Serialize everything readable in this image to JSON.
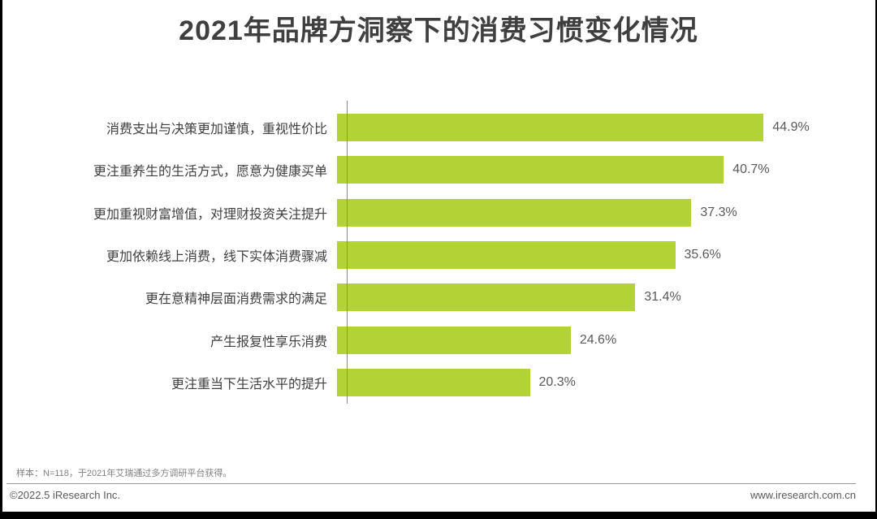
{
  "title": "2021年品牌方洞察下的消费习惯变化情况",
  "chart_data": {
    "type": "bar",
    "orientation": "horizontal",
    "title": "2021年品牌方洞察下的消费习惯变化情况",
    "categories": [
      "消费支出与决策更加谨慎，重视性价比",
      "更注重养生的生活方式，愿意为健康买单",
      "更加重视财富增值，对理财投资关注提升",
      "更加依赖线上消费，线下实体消费骤减",
      "更在意精神层面消费需求的满足",
      "产生报复性享乐消费",
      "更注重当下生活水平的提升"
    ],
    "values": [
      44.9,
      40.7,
      37.3,
      35.6,
      31.4,
      24.6,
      20.3
    ],
    "value_labels": [
      "44.9%",
      "40.7%",
      "37.3%",
      "35.6%",
      "31.4%",
      "24.6%",
      "20.3%"
    ],
    "xlabel": "",
    "ylabel": "",
    "xlim": [
      0,
      50
    ],
    "grid": false,
    "legend": false,
    "bar_color": "#b2d235"
  },
  "footer": {
    "sample_note": "样本：N=118，于2021年艾瑞通过多方调研平台获得。",
    "copyright": "©2022.5 iResearch Inc.",
    "website": "www.iresearch.com.cn"
  },
  "colors": {
    "bar": "#b2d235",
    "title_text": "#3f3f3f",
    "category_text": "#404040",
    "value_text": "#595959",
    "axis_line": "#8c8c8c",
    "footer_text": "#7f7f7f"
  }
}
